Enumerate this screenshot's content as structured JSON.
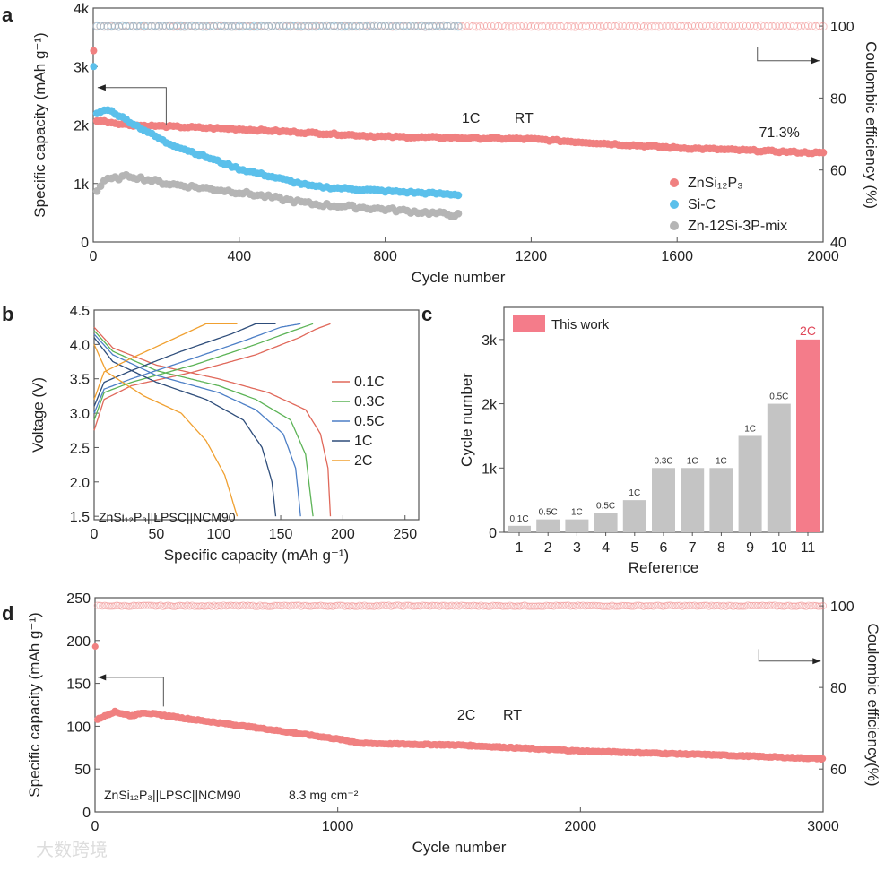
{
  "chart_data": [
    {
      "panel": "a",
      "type": "scatter",
      "xlabel": "Cycle number",
      "ylabel": "Specific capacity (mAh g⁻¹)",
      "ylabel_right": "Coulombic efficiency (%)",
      "xlim": [
        0,
        2000
      ],
      "ylim": [
        0,
        4000
      ],
      "ylim_right": [
        40,
        105
      ],
      "xticks": [
        "0",
        "400",
        "800",
        "1200",
        "1600",
        "2000"
      ],
      "xtick_values": [
        0,
        400,
        800,
        1200,
        1600,
        2000
      ],
      "yticks": [
        "0",
        "1k",
        "2k",
        "3k",
        "4k"
      ],
      "ytick_values": [
        0,
        1000,
        2000,
        3000,
        4000
      ],
      "yticks_right": [
        "40",
        "60",
        "80",
        "100"
      ],
      "ytick_values_right": [
        40,
        60,
        80,
        100
      ],
      "annotations": [
        "1C",
        "RT",
        "71.3%"
      ],
      "series": [
        {
          "name": "ZnSi₁₂P₃",
          "color": "#f08080",
          "capacity": [
            [
              1,
              3270
            ],
            [
              10,
              2080
            ],
            [
              100,
              2000
            ],
            [
              400,
              1930
            ],
            [
              800,
              1800
            ],
            [
              1200,
              1760
            ],
            [
              1600,
              1610
            ],
            [
              2000,
              1520
            ]
          ],
          "ce": [
            [
              10,
              100
            ],
            [
              2000,
              100
            ]
          ]
        },
        {
          "name": "Si-C",
          "color": "#5bc0eb",
          "capacity": [
            [
              1,
              3000
            ],
            [
              10,
              2200
            ],
            [
              40,
              2270
            ],
            [
              200,
              1700
            ],
            [
              400,
              1250
            ],
            [
              600,
              950
            ],
            [
              800,
              870
            ],
            [
              1000,
              810
            ]
          ],
          "ce": [
            [
              10,
              100
            ],
            [
              1000,
              100
            ]
          ]
        },
        {
          "name": "Zn-12Si-3P-mix",
          "color": "#b5b5b5",
          "capacity": [
            [
              10,
              870
            ],
            [
              30,
              1050
            ],
            [
              100,
              1130
            ],
            [
              200,
              1000
            ],
            [
              400,
              850
            ],
            [
              600,
              650
            ],
            [
              800,
              560
            ],
            [
              1000,
              460
            ]
          ],
          "ce": [
            [
              10,
              100
            ],
            [
              1000,
              100
            ]
          ]
        }
      ]
    },
    {
      "panel": "b",
      "type": "line",
      "xlabel": "Specific capacity (mAh g⁻¹)",
      "ylabel": "Voltage (V)",
      "xlim": [
        0,
        261
      ],
      "ylim": [
        1.45,
        4.5
      ],
      "xticks": [
        "0",
        "50",
        "100",
        "150",
        "200",
        "250"
      ],
      "xtick_values": [
        0,
        50,
        100,
        150,
        200,
        250
      ],
      "yticks": [
        "1.5",
        "2.0",
        "2.5",
        "3.0",
        "3.5",
        "4.0",
        "4.5"
      ],
      "ytick_values": [
        1.5,
        2.0,
        2.5,
        3.0,
        3.5,
        4.0,
        4.5
      ],
      "annotation": "ZnSi₁₂P₃||LPSC||NCM90",
      "series": [
        {
          "name": "0.1C",
          "color": "#e0685a",
          "discharge": [
            [
              0,
              4.25
            ],
            [
              15,
              3.95
            ],
            [
              50,
              3.7
            ],
            [
              100,
              3.5
            ],
            [
              140,
              3.3
            ],
            [
              170,
              3.05
            ],
            [
              182,
              2.7
            ],
            [
              188,
              2.2
            ],
            [
              190,
              1.5
            ]
          ],
          "charge": [
            [
              0,
              2.75
            ],
            [
              8,
              3.2
            ],
            [
              30,
              3.4
            ],
            [
              80,
              3.6
            ],
            [
              130,
              3.85
            ],
            [
              165,
              4.1
            ],
            [
              178,
              4.22
            ],
            [
              190,
              4.3
            ]
          ]
        },
        {
          "name": "0.3C",
          "color": "#5cb356",
          "discharge": [
            [
              0,
              4.2
            ],
            [
              15,
              3.9
            ],
            [
              50,
              3.62
            ],
            [
              100,
              3.4
            ],
            [
              130,
              3.2
            ],
            [
              158,
              2.9
            ],
            [
              170,
              2.4
            ],
            [
              176,
              1.5
            ]
          ],
          "charge": [
            [
              0,
              2.9
            ],
            [
              8,
              3.3
            ],
            [
              30,
              3.45
            ],
            [
              80,
              3.7
            ],
            [
              130,
              4.0
            ],
            [
              160,
              4.2
            ],
            [
              176,
              4.3
            ]
          ]
        },
        {
          "name": "0.5C",
          "color": "#4d7fc6",
          "discharge": [
            [
              0,
              4.15
            ],
            [
              15,
              3.85
            ],
            [
              50,
              3.55
            ],
            [
              100,
              3.3
            ],
            [
              130,
              3.05
            ],
            [
              152,
              2.7
            ],
            [
              162,
              2.2
            ],
            [
              166,
              1.5
            ]
          ],
          "charge": [
            [
              0,
              3.0
            ],
            [
              8,
              3.35
            ],
            [
              30,
              3.5
            ],
            [
              80,
              3.8
            ],
            [
              120,
              4.05
            ],
            [
              150,
              4.25
            ],
            [
              166,
              4.3
            ]
          ]
        },
        {
          "name": "1C",
          "color": "#2e4d7a",
          "discharge": [
            [
              0,
              4.1
            ],
            [
              15,
              3.75
            ],
            [
              50,
              3.45
            ],
            [
              90,
              3.2
            ],
            [
              120,
              2.9
            ],
            [
              135,
              2.5
            ],
            [
              143,
              2.0
            ],
            [
              146,
              1.5
            ]
          ],
          "charge": [
            [
              0,
              3.1
            ],
            [
              8,
              3.45
            ],
            [
              30,
              3.62
            ],
            [
              70,
              3.9
            ],
            [
              110,
              4.15
            ],
            [
              130,
              4.3
            ],
            [
              146,
              4.3
            ]
          ]
        },
        {
          "name": "2C",
          "color": "#f0a030",
          "discharge": [
            [
              0,
              4.0
            ],
            [
              10,
              3.6
            ],
            [
              40,
              3.25
            ],
            [
              70,
              3.0
            ],
            [
              90,
              2.6
            ],
            [
              105,
              2.1
            ],
            [
              115,
              1.5
            ]
          ],
          "charge": [
            [
              0,
              3.2
            ],
            [
              8,
              3.6
            ],
            [
              30,
              3.8
            ],
            [
              60,
              4.05
            ],
            [
              90,
              4.3
            ],
            [
              115,
              4.3
            ]
          ]
        }
      ]
    },
    {
      "panel": "c",
      "type": "bar",
      "xlabel": "Reference",
      "ylabel": "Cycle number",
      "ylim": [
        0,
        3500
      ],
      "yticks": [
        "0",
        "1k",
        "2k",
        "3k"
      ],
      "ytick_values": [
        0,
        1000,
        2000,
        3000
      ],
      "categories": [
        "1",
        "2",
        "3",
        "4",
        "5",
        "6",
        "7",
        "8",
        "9",
        "10",
        "11"
      ],
      "values": [
        100,
        200,
        200,
        300,
        500,
        1000,
        1000,
        1000,
        1500,
        2000,
        3000
      ],
      "rates": [
        "0.1C",
        "0.5C",
        "1C",
        "0.5C",
        "1C",
        "0.3C",
        "1C",
        "1C",
        "1C",
        "0.5C",
        "2C"
      ],
      "legend": "This work",
      "colors": {
        "reference": "#c4c4c4",
        "this_work": "#f47c8a"
      }
    },
    {
      "panel": "d",
      "type": "scatter",
      "xlabel": "Cycle number",
      "ylabel": "Specific capacity (mAh g⁻¹)",
      "ylabel_right": "Coulombic efficiency(%)",
      "xlim": [
        0,
        3000
      ],
      "ylim": [
        0,
        250
      ],
      "ylim_right": [
        49.5,
        102
      ],
      "xticks": [
        "0",
        "1000",
        "2000",
        "3000"
      ],
      "xtick_values": [
        0,
        1000,
        2000,
        3000
      ],
      "yticks": [
        "0",
        "50",
        "100",
        "150",
        "200",
        "250"
      ],
      "ytick_values": [
        0,
        50,
        100,
        150,
        200,
        250
      ],
      "yticks_right": [
        "60",
        "80",
        "100"
      ],
      "ytick_values_right": [
        60,
        80,
        100
      ],
      "annotations": [
        "2C",
        "RT"
      ],
      "cell_label": "ZnSi₁₂P₃||LPSC||NCM90",
      "loading_label": "8.3 mg cm⁻²",
      "series": [
        {
          "name": "ZnSi₁₂P₃",
          "color": "#f08080",
          "capacity": [
            [
              1,
              193
            ],
            [
              10,
              108
            ],
            [
              80,
              117
            ],
            [
              150,
              112
            ],
            [
              200,
              116
            ],
            [
              400,
              108
            ],
            [
              700,
              97
            ],
            [
              1000,
              85
            ],
            [
              1100,
              80
            ],
            [
              1500,
              78
            ],
            [
              2000,
              71
            ],
            [
              2500,
              67
            ],
            [
              3000,
              62
            ]
          ],
          "ce": [
            [
              10,
              100
            ],
            [
              3000,
              100
            ]
          ]
        }
      ]
    }
  ],
  "panel_letters": [
    "a",
    "b",
    "c",
    "d"
  ],
  "watermark": "大数跨境"
}
